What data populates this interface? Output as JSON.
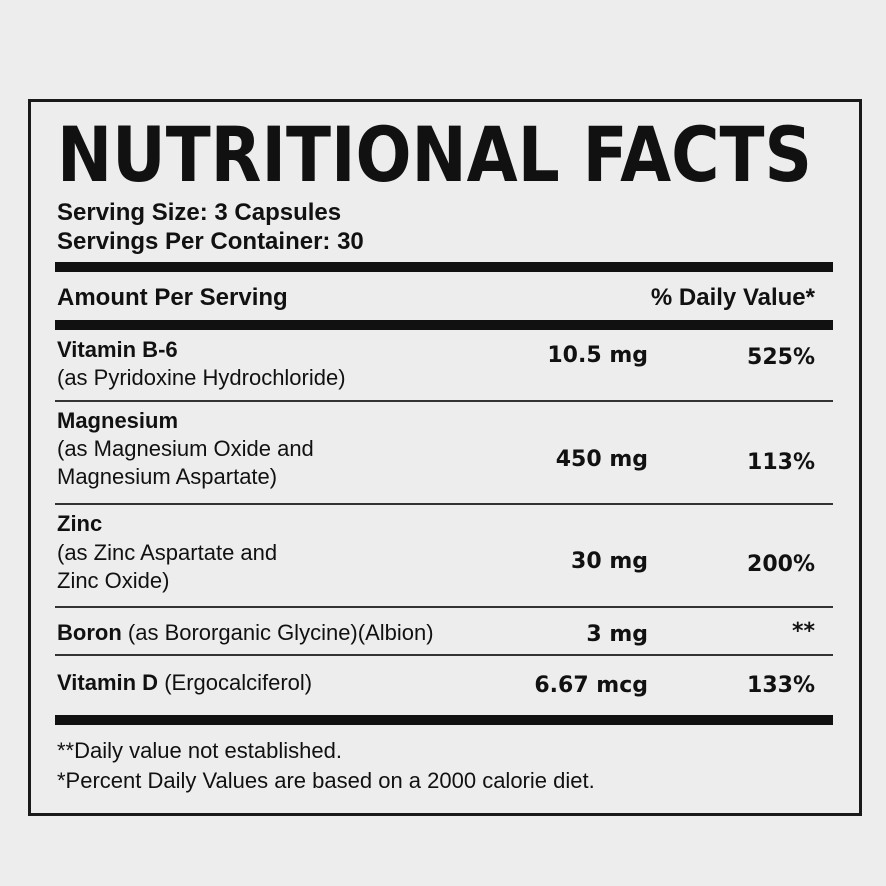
{
  "header": {
    "title": "NUTRITIONAL FACTS",
    "serving_size": "Serving Size: 3 Capsules",
    "servings_per_container": "Servings Per Container: 30"
  },
  "table": {
    "columns": [
      "Amount Per Serving",
      "% Daily Value*"
    ],
    "rows": [
      {
        "name": "Vitamin B-6",
        "source": [
          "(as Pyridoxine Hydrochloride)"
        ],
        "amount": "10.5 mg",
        "daily_value": "525%"
      },
      {
        "name": "Magnesium",
        "source": [
          "(as Magnesium Oxide and",
          "Magnesium Aspartate)"
        ],
        "amount": "450 mg",
        "daily_value": "113%"
      },
      {
        "name": "Zinc",
        "source": [
          "(as Zinc Aspartate and",
          "Zinc Oxide)"
        ],
        "amount": "30 mg",
        "daily_value": "200%"
      },
      {
        "name": "Boron",
        "source": [
          "(as Bororganic Glycine)(Albion)"
        ],
        "amount": "3 mg",
        "daily_value": "**"
      },
      {
        "name": "Vitamin D",
        "source": [
          "(Ergocalciferol)"
        ],
        "amount": "6.67 mcg",
        "daily_value": "133%"
      }
    ]
  },
  "footnotes": [
    "**Daily value not established.",
    "*Percent Daily Values are based on a 2000 calorie diet."
  ]
}
